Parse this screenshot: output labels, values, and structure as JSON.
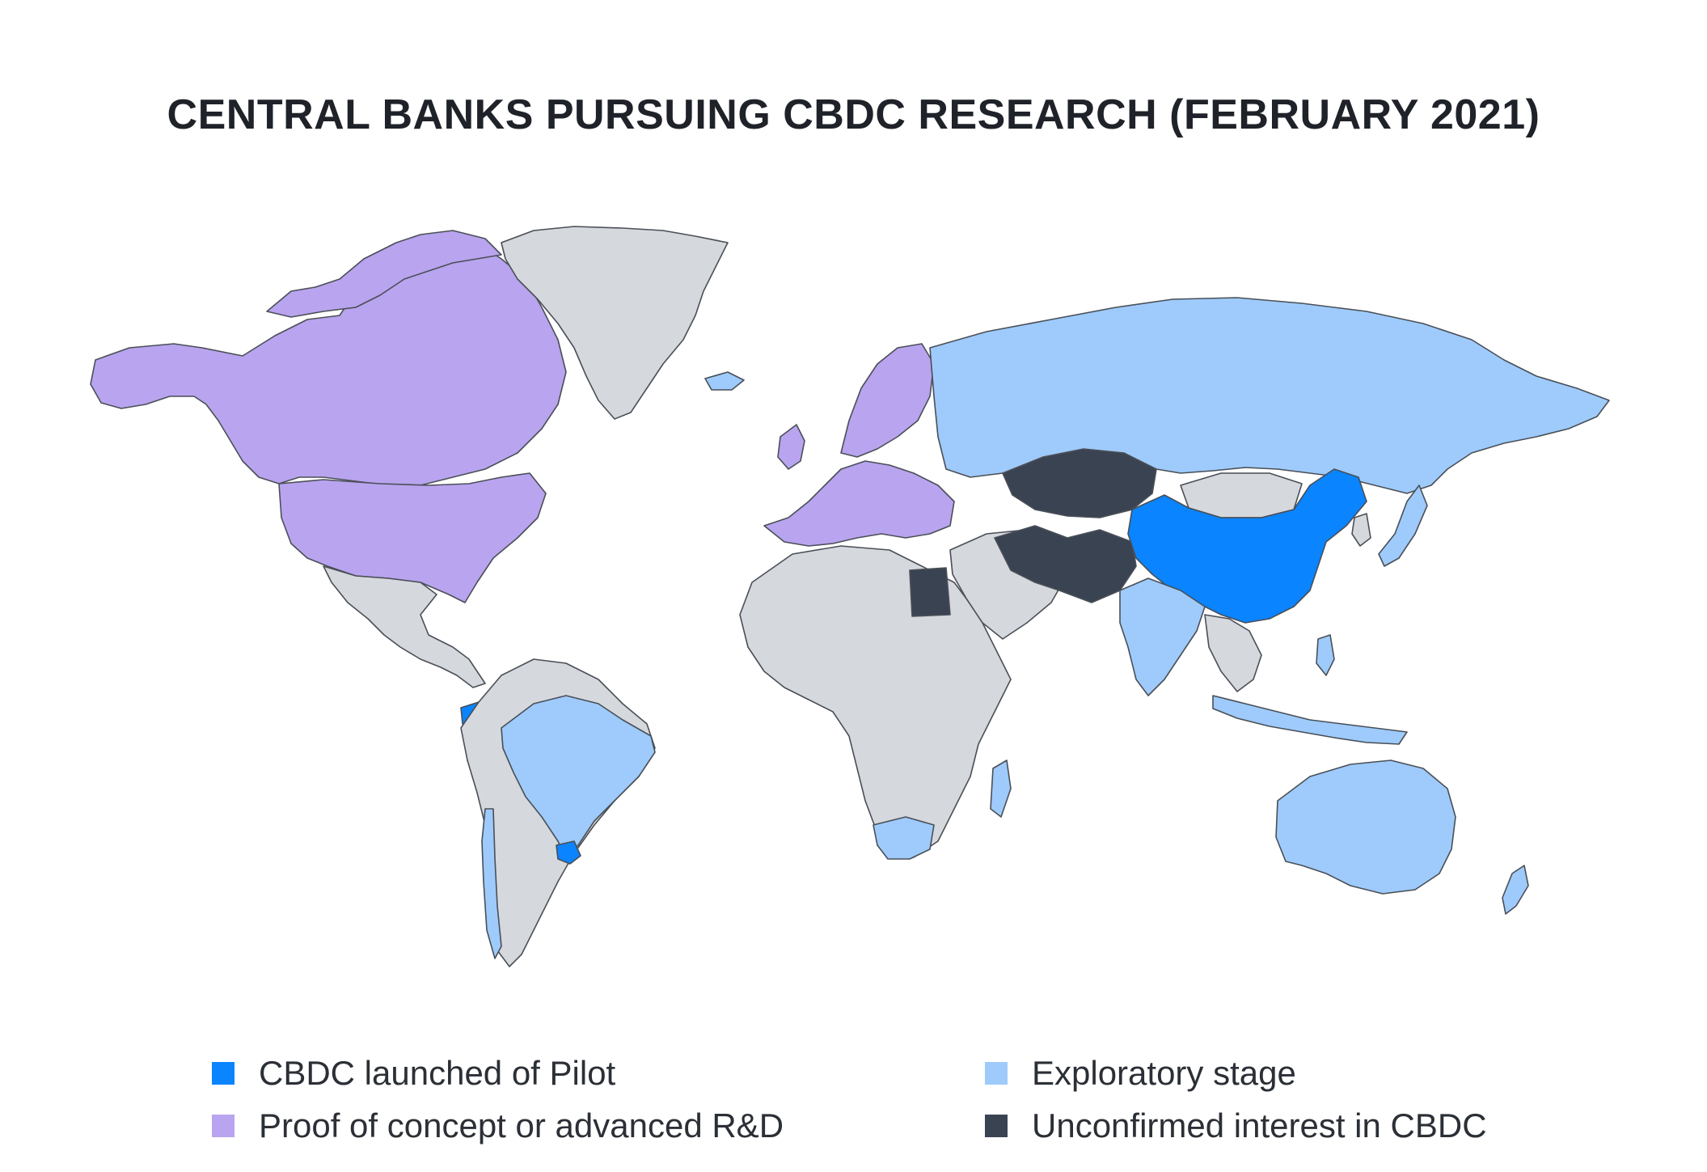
{
  "title": "CENTRAL BANKS PURSUING CBDC RESEARCH (FEBRUARY 2021)",
  "colors": {
    "pilot": "#0a84ff",
    "poc": "#b9a4ef",
    "exploratory": "#9ecbfb",
    "unconfirmed": "#3a4352",
    "none": "#d5d8dd",
    "border": "#4a4f57"
  },
  "legend": [
    {
      "label": "CBDC launched of Pilot",
      "category": "pilot"
    },
    {
      "label": "Exploratory stage",
      "category": "exploratory"
    },
    {
      "label": "Proof of concept or advanced R&D",
      "category": "poc"
    },
    {
      "label": "Unconfirmed interest in CBDC",
      "category": "unconfirmed"
    }
  ]
}
